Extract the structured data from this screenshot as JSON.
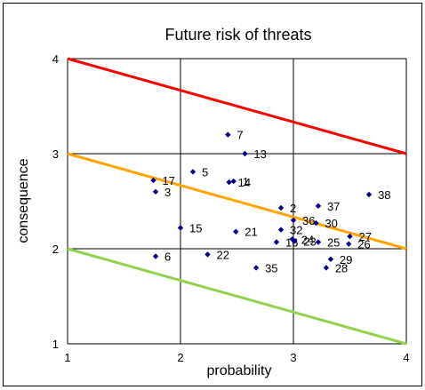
{
  "chart_data": {
    "type": "scatter",
    "title": "Future risk of threats",
    "xlabel": "probability",
    "ylabel": "consequence",
    "xlim": [
      1,
      4
    ],
    "ylim": [
      1,
      4
    ],
    "xticks": [
      "1",
      "2",
      "3",
      "4"
    ],
    "yticks": [
      "1",
      "2",
      "3",
      "4"
    ],
    "grid": true,
    "marker_color": "#00008B",
    "lines": [
      {
        "color": "#FF0000",
        "x": [
          1,
          4
        ],
        "y": [
          4.0,
          3.0
        ]
      },
      {
        "color": "#FFA500",
        "x": [
          1,
          4
        ],
        "y": [
          3.0,
          2.0
        ]
      },
      {
        "color": "#92D050",
        "x": [
          1,
          4
        ],
        "y": [
          2.0,
          1.0
        ]
      }
    ],
    "points": [
      {
        "label": "1",
        "x": 2.47,
        "y": 2.71
      },
      {
        "label": "2",
        "x": 2.89,
        "y": 2.43
      },
      {
        "label": "3",
        "x": 1.78,
        "y": 2.6
      },
      {
        "label": "5",
        "x": 2.11,
        "y": 2.81
      },
      {
        "label": "6",
        "x": 1.78,
        "y": 1.92
      },
      {
        "label": "7",
        "x": 2.42,
        "y": 3.2
      },
      {
        "label": "13",
        "x": 2.57,
        "y": 3.0
      },
      {
        "label": "14",
        "x": 2.43,
        "y": 2.7
      },
      {
        "label": "15",
        "x": 2.0,
        "y": 2.22
      },
      {
        "label": "16",
        "x": 2.85,
        "y": 2.07
      },
      {
        "label": "17",
        "x": 1.76,
        "y": 2.72
      },
      {
        "label": "21",
        "x": 2.49,
        "y": 2.18
      },
      {
        "label": "22",
        "x": 2.24,
        "y": 1.94
      },
      {
        "label": "23",
        "x": 3.01,
        "y": 2.08
      },
      {
        "label": "24",
        "x": 2.99,
        "y": 2.1
      },
      {
        "label": "25",
        "x": 3.22,
        "y": 2.07
      },
      {
        "label": "26",
        "x": 3.49,
        "y": 2.05
      },
      {
        "label": "27",
        "x": 3.5,
        "y": 2.13
      },
      {
        "label": "28",
        "x": 3.29,
        "y": 1.8
      },
      {
        "label": "29",
        "x": 3.33,
        "y": 1.89
      },
      {
        "label": "30",
        "x": 3.2,
        "y": 2.27
      },
      {
        "label": "32",
        "x": 2.89,
        "y": 2.2
      },
      {
        "label": "35",
        "x": 2.67,
        "y": 1.8
      },
      {
        "label": "36",
        "x": 3.0,
        "y": 2.3
      },
      {
        "label": "37",
        "x": 3.22,
        "y": 2.45
      },
      {
        "label": "38",
        "x": 3.67,
        "y": 2.57
      }
    ]
  }
}
